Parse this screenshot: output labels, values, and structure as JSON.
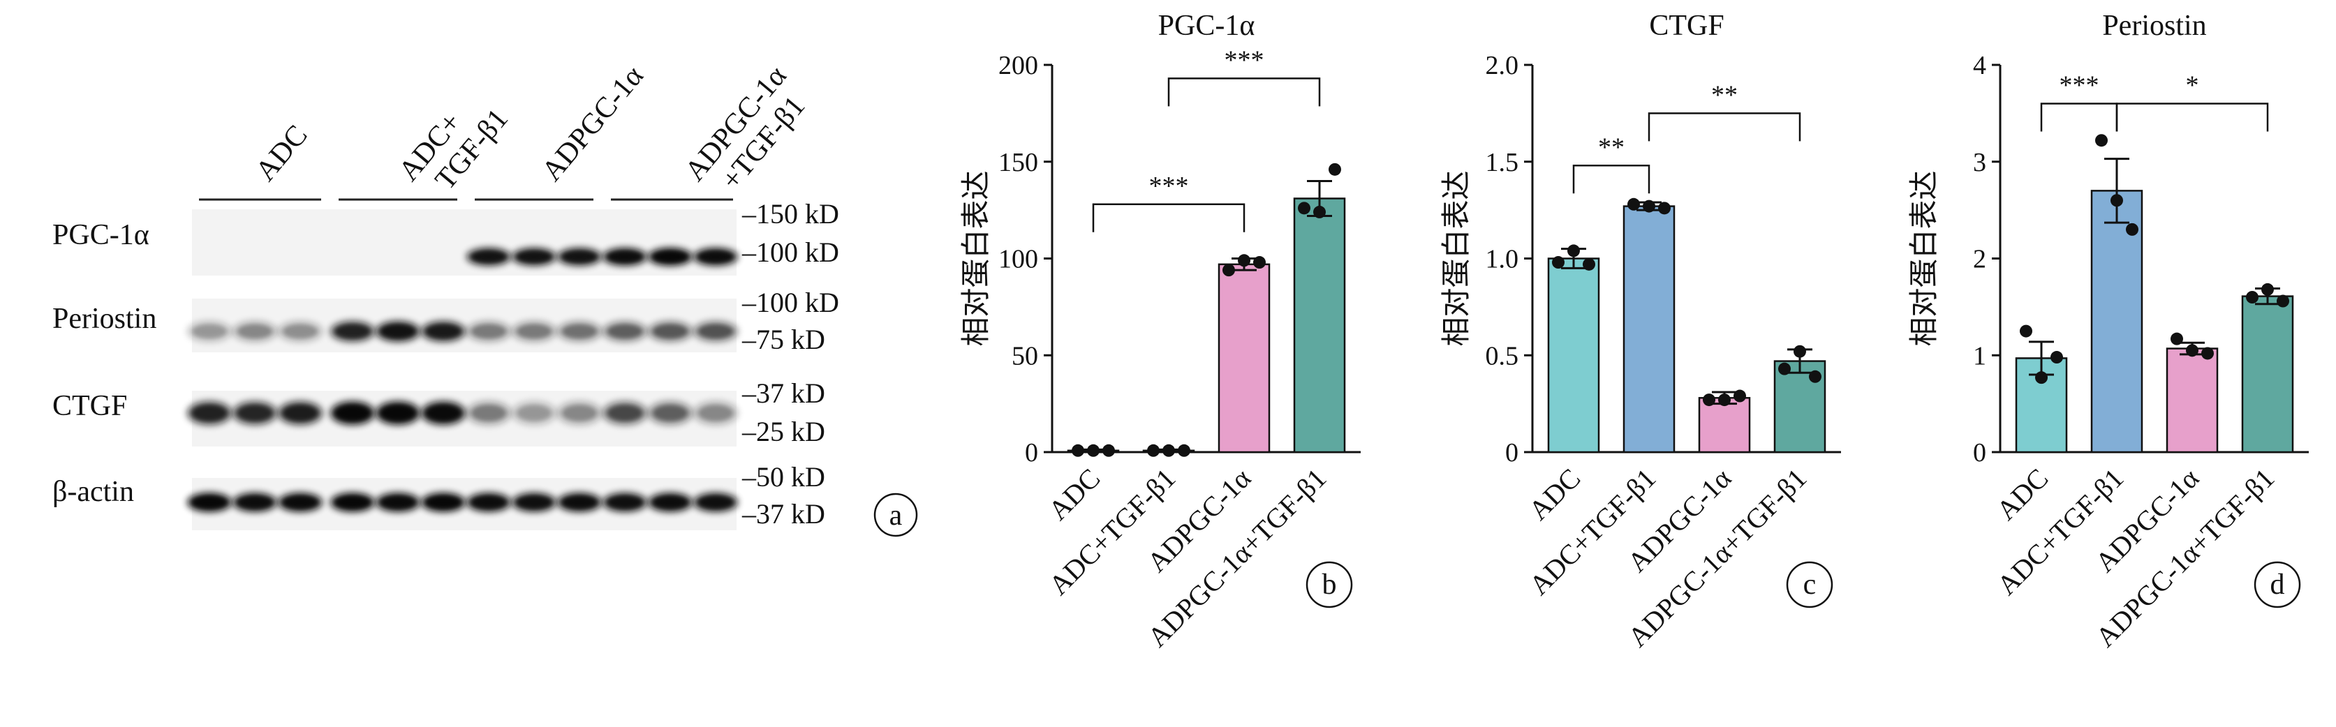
{
  "panel_a": {
    "groups": [
      "ADC",
      "ADC+\nTGF-β1",
      "ADPGC-1α",
      "ADPGC-1α\n+TGF-β1"
    ],
    "proteins": [
      "PGC-1α",
      "Periostin",
      "CTGF",
      "β-actin"
    ],
    "markers": [
      "–150 kD",
      "–100 kD",
      "–100 kD",
      "–75 kD",
      "–37 kD",
      "–25 kD",
      "–50 kD",
      "–37 kD"
    ],
    "panel_label": "a"
  },
  "chart_data": [
    {
      "type": "bar",
      "panel_label": "b",
      "title": "PGC-1α",
      "ylabel": "相对蛋白表达",
      "categories": [
        "ADC",
        "ADC+TGF-β1",
        "ADPGC-1α",
        "ADPGC-1α+TGF-β1"
      ],
      "values": [
        0.8,
        0.8,
        97,
        131
      ],
      "errors": [
        0.5,
        0.5,
        3,
        9
      ],
      "points": [
        [
          0.8,
          0.8,
          0.8
        ],
        [
          0.8,
          0.8,
          0.8
        ],
        [
          94,
          99,
          98
        ],
        [
          126,
          124,
          146
        ]
      ],
      "colors": [
        "#7ecdd0",
        "#82aed6",
        "#e7a0cb",
        "#5fa89f"
      ],
      "ylim": [
        0,
        200
      ],
      "yticks": [
        0,
        50,
        100,
        150,
        200
      ],
      "significance": [
        {
          "from": 0,
          "to": 2,
          "label": "***",
          "y": 128
        },
        {
          "from": 1,
          "to": 3,
          "label": "***",
          "y": 193
        }
      ]
    },
    {
      "type": "bar",
      "panel_label": "c",
      "title": "CTGF",
      "ylabel": "相对蛋白表达",
      "categories": [
        "ADC",
        "ADC+TGF-β1",
        "ADPGC-1α",
        "ADPGC-1α+TGF-β1"
      ],
      "values": [
        1.0,
        1.27,
        0.28,
        0.47
      ],
      "errors": [
        0.05,
        0.02,
        0.03,
        0.06
      ],
      "points": [
        [
          0.98,
          1.04,
          0.97
        ],
        [
          1.28,
          1.27,
          1.26
        ],
        [
          0.27,
          0.27,
          0.29
        ],
        [
          0.43,
          0.52,
          0.39
        ]
      ],
      "colors": [
        "#7ecdd0",
        "#82aed6",
        "#e7a0cb",
        "#5fa89f"
      ],
      "ylim": [
        0,
        2.0
      ],
      "yticks": [
        0,
        0.5,
        1.0,
        1.5,
        2.0
      ],
      "ytick_labels": [
        "0",
        "0.5",
        "1.0",
        "1.5",
        "2.0"
      ],
      "significance": [
        {
          "from": 0,
          "to": 1,
          "label": "**",
          "y": 1.48
        },
        {
          "from": 1,
          "to": 3,
          "label": "**",
          "y": 1.75
        }
      ]
    },
    {
      "type": "bar",
      "panel_label": "d",
      "title": "Periostin",
      "ylabel": "相对蛋白表达",
      "categories": [
        "ADC",
        "ADC+TGF-β1",
        "ADPGC-1α",
        "ADPGC-1α+TGF-β1"
      ],
      "values": [
        0.97,
        2.7,
        1.07,
        1.61
      ],
      "errors": [
        0.17,
        0.33,
        0.06,
        0.08
      ],
      "points": [
        [
          1.25,
          0.77,
          0.98
        ],
        [
          3.22,
          2.6,
          2.3
        ],
        [
          1.17,
          1.05,
          1.02
        ],
        [
          1.6,
          1.68,
          1.56
        ]
      ],
      "colors": [
        "#7ecdd0",
        "#82aed6",
        "#e7a0cb",
        "#5fa89f"
      ],
      "ylim": [
        0,
        4
      ],
      "yticks": [
        0,
        1,
        2,
        3,
        4
      ],
      "significance": [
        {
          "from": 0,
          "to": 1,
          "label": "***",
          "y": 3.6
        },
        {
          "from": 1,
          "to": 3,
          "label": "*",
          "y": 3.6
        }
      ]
    }
  ]
}
